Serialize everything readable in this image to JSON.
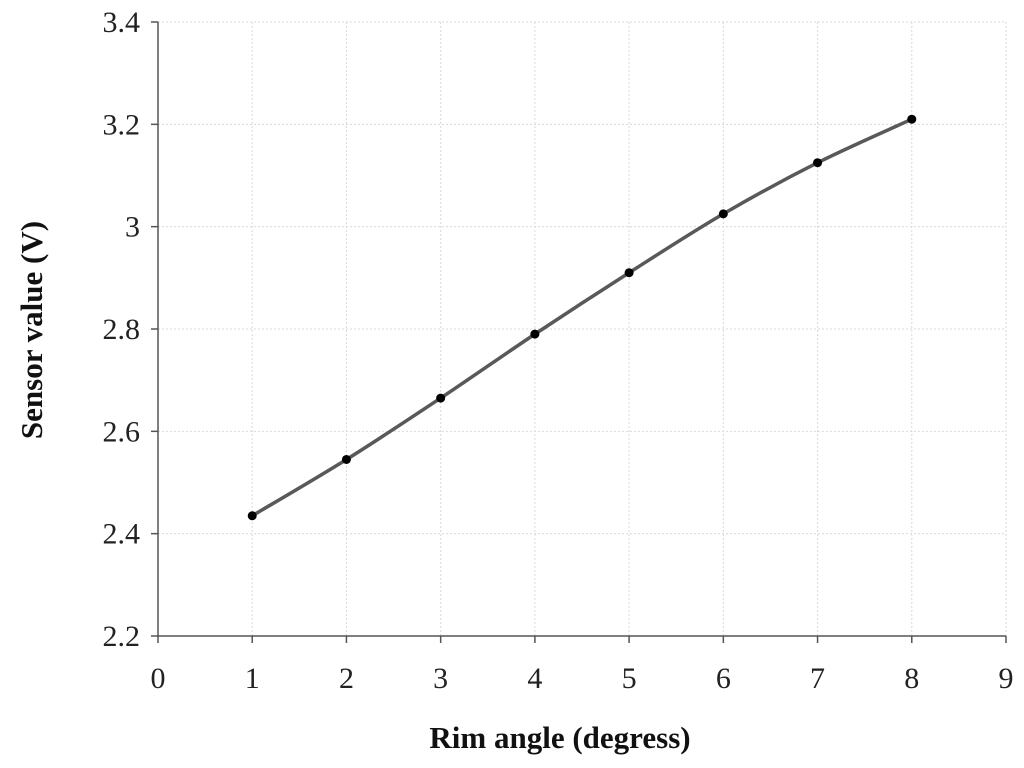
{
  "chart_data": {
    "type": "line",
    "title": "",
    "xlabel": "Rim angle (degress)",
    "ylabel": "Sensor value (V)",
    "xlim": [
      0,
      9
    ],
    "ylim": [
      2.2,
      3.4
    ],
    "x_ticks": [
      "0",
      "1",
      "2",
      "3",
      "4",
      "5",
      "6",
      "7",
      "8",
      "9"
    ],
    "y_ticks": [
      "2.2",
      "2.4",
      "2.6",
      "2.8",
      "3",
      "3.2",
      "3.4"
    ],
    "grid": true,
    "legend": "none",
    "series": [
      {
        "x": [
          1,
          2,
          3,
          4,
          5,
          6,
          7,
          8
        ],
        "y": [
          2.435,
          2.545,
          2.665,
          2.79,
          2.91,
          3.025,
          3.125,
          3.21
        ],
        "line_color": "#595959",
        "marker_color": "#000000",
        "smooth": true
      }
    ]
  }
}
